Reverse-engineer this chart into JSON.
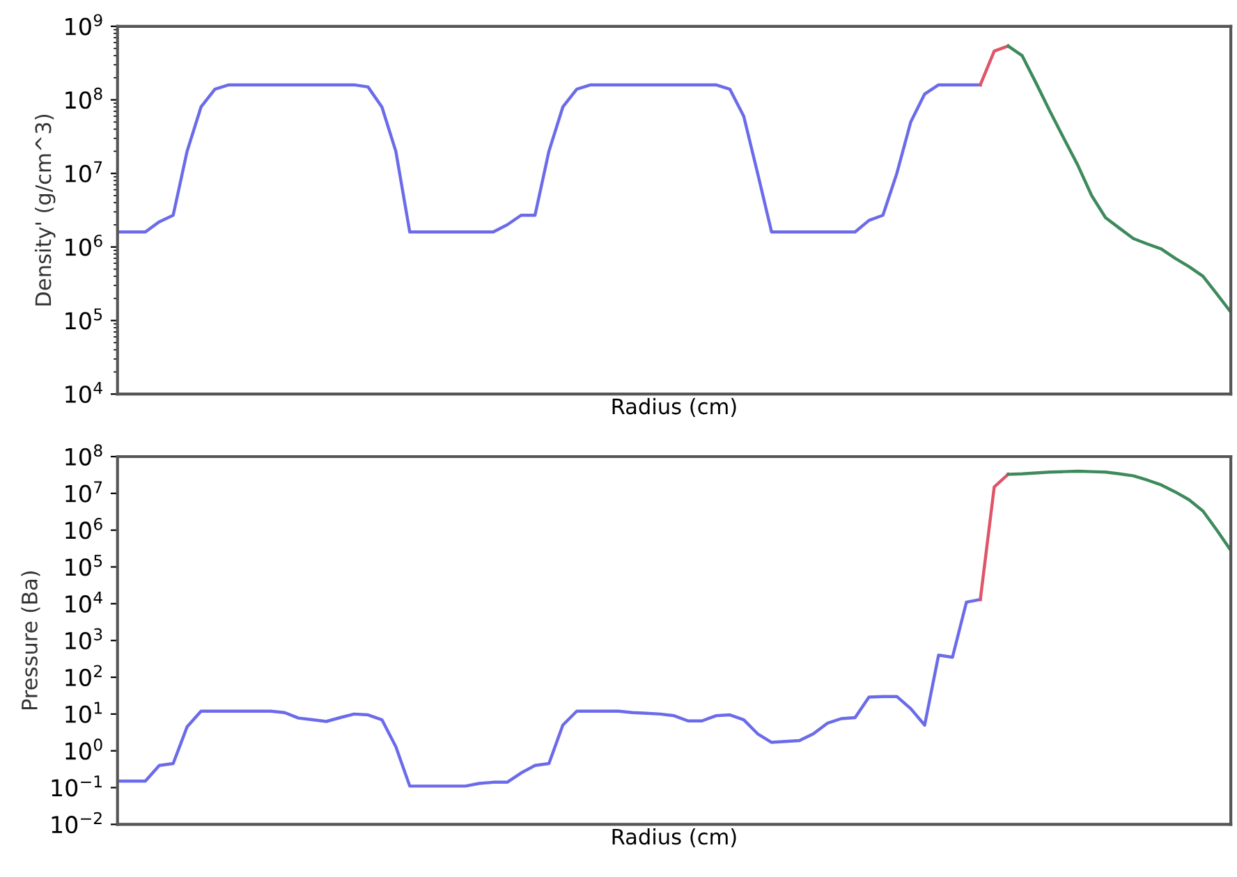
{
  "chart_data": [
    {
      "type": "line",
      "ylabel": "Density' (g/cm^3)",
      "xlabel": "Radius (cm)",
      "log": "y",
      "tick_labels": "y",
      "grid": false,
      "legend": false,
      "marker": "none",
      "line_style": "solid",
      "categories": [
        null,
        null,
        null,
        null,
        null,
        null,
        null,
        null,
        null,
        null,
        null,
        null,
        null,
        null,
        null,
        null,
        null,
        null,
        null,
        null,
        null,
        null,
        null,
        null,
        null,
        null,
        null,
        null,
        null,
        null,
        null,
        null,
        null,
        null,
        null,
        null,
        null,
        null,
        null,
        null,
        null,
        null,
        null,
        null,
        null,
        null,
        null,
        null,
        null,
        null,
        null,
        null,
        null,
        null,
        null,
        null,
        null,
        null,
        null,
        null,
        null,
        null,
        null,
        null,
        null,
        null,
        null,
        null,
        null,
        null,
        null,
        null,
        null,
        null,
        null,
        null,
        null,
        null,
        null,
        null,
        null
      ],
      "ylim": [
        10000.0,
        1000000000.0
      ],
      "yticks": [
        {
          "value": 10000.0,
          "label": "10$^{4}$"
        },
        {
          "value": 100000.0,
          "label": "10$^{5}$"
        },
        {
          "value": 1000000.0,
          "label": "10$^{6}$"
        },
        {
          "value": 10000000.0,
          "label": "10$^{7}$"
        },
        {
          "value": 100000000.0,
          "label": "10$^{8}$"
        },
        {
          "value": 1000000000.0,
          "label": "10$^{9}$"
        }
      ],
      "series": [
        {
          "color": "#6b6bea",
          "values": [
            1600000.0,
            1600000.0,
            1600000.0,
            2200000.0,
            2700000.0,
            20000000.0,
            80000000.0,
            140000000.0,
            160000000.0,
            160000000.0,
            160000000.0,
            160000000.0,
            160000000.0,
            160000000.0,
            160000000.0,
            160000000.0,
            160000000.0,
            160000000.0,
            150000000.0,
            80000000.0,
            20000000.0,
            1600000.0,
            1600000.0,
            1600000.0,
            1600000.0,
            1600000.0,
            1600000.0,
            1600000.0,
            2000000.0,
            2700000.0,
            2700000.0,
            20000000.0,
            80000000.0,
            140000000.0,
            160000000.0,
            160000000.0,
            160000000.0,
            160000000.0,
            160000000.0,
            160000000.0,
            160000000.0,
            160000000.0,
            160000000.0,
            160000000.0,
            140000000.0,
            60000000.0,
            10000000.0,
            1600000.0,
            1600000.0,
            1600000.0,
            1600000.0,
            1600000.0,
            1600000.0,
            1600000.0,
            2300000.0,
            2700000.0,
            10000000.0,
            50000000.0,
            120000000.0,
            160000000.0,
            160000000.0,
            160000000.0,
            160000000.0,
            null,
            null,
            null,
            null,
            null,
            null,
            null,
            null,
            null,
            null,
            null,
            null,
            null,
            null,
            null,
            null,
            null,
            null
          ]
        },
        {
          "color": "#e05468",
          "values": [
            null,
            null,
            null,
            null,
            null,
            null,
            null,
            null,
            null,
            null,
            null,
            null,
            null,
            null,
            null,
            null,
            null,
            null,
            null,
            null,
            null,
            null,
            null,
            null,
            null,
            null,
            null,
            null,
            null,
            null,
            null,
            null,
            null,
            null,
            null,
            null,
            null,
            null,
            null,
            null,
            null,
            null,
            null,
            null,
            null,
            null,
            null,
            null,
            null,
            null,
            null,
            null,
            null,
            null,
            null,
            null,
            null,
            null,
            null,
            null,
            null,
            null,
            160000000.0,
            460000000.0,
            540000000.0,
            null,
            null,
            null,
            null,
            null,
            null,
            null,
            null,
            null,
            null,
            null,
            null,
            null,
            null,
            null,
            null
          ]
        },
        {
          "color": "#3e8a5c",
          "values": [
            null,
            null,
            null,
            null,
            null,
            null,
            null,
            null,
            null,
            null,
            null,
            null,
            null,
            null,
            null,
            null,
            null,
            null,
            null,
            null,
            null,
            null,
            null,
            null,
            null,
            null,
            null,
            null,
            null,
            null,
            null,
            null,
            null,
            null,
            null,
            null,
            null,
            null,
            null,
            null,
            null,
            null,
            null,
            null,
            null,
            null,
            null,
            null,
            null,
            null,
            null,
            null,
            null,
            null,
            null,
            null,
            null,
            null,
            null,
            null,
            null,
            null,
            null,
            null,
            540000000.0,
            400000000.0,
            170000000.0,
            70000000.0,
            30000000.0,
            13000000.0,
            5000000.0,
            2500000.0,
            1800000.0,
            1300000.0,
            1100000.0,
            940000.0,
            700000.0,
            540000.0,
            400000.0,
            230000.0,
            130000.0
          ]
        }
      ]
    },
    {
      "type": "line",
      "ylabel": "Pressure (Ba)",
      "xlabel": "Radius (cm)",
      "log": "y",
      "tick_labels": "y",
      "grid": false,
      "legend": false,
      "marker": "none",
      "line_style": "solid",
      "categories": [
        null,
        null,
        null,
        null,
        null,
        null,
        null,
        null,
        null,
        null,
        null,
        null,
        null,
        null,
        null,
        null,
        null,
        null,
        null,
        null,
        null,
        null,
        null,
        null,
        null,
        null,
        null,
        null,
        null,
        null,
        null,
        null,
        null,
        null,
        null,
        null,
        null,
        null,
        null,
        null,
        null,
        null,
        null,
        null,
        null,
        null,
        null,
        null,
        null,
        null,
        null,
        null,
        null,
        null,
        null,
        null,
        null,
        null,
        null,
        null,
        null,
        null,
        null,
        null,
        null,
        null,
        null,
        null,
        null,
        null,
        null,
        null,
        null,
        null,
        null,
        null,
        null,
        null,
        null,
        null,
        null
      ],
      "ylim": [
        0.01,
        100000000.0
      ],
      "yticks": [
        {
          "value": 0.01,
          "label": "10$^{−2}$"
        },
        {
          "value": 0.1,
          "label": "10$^{−1}$"
        },
        {
          "value": 1,
          "label": "10$^{0}$"
        },
        {
          "value": 10,
          "label": "10$^{1}$"
        },
        {
          "value": 100,
          "label": "10$^{2}$"
        },
        {
          "value": 1000,
          "label": "10$^{3}$"
        },
        {
          "value": 10000.0,
          "label": "10$^{4}$"
        },
        {
          "value": 100000.0,
          "label": "10$^{5}$"
        },
        {
          "value": 1000000.0,
          "label": "10$^{6}$"
        },
        {
          "value": 10000000.0,
          "label": "10$^{7}$"
        },
        {
          "value": 100000000.0,
          "label": "10$^{8}$"
        }
      ],
      "series": [
        {
          "color": "#6b6bea",
          "values": [
            0.15,
            0.15,
            0.15,
            0.4,
            0.45,
            4.5,
            12,
            12,
            12,
            12,
            12,
            12,
            11,
            7.8,
            7,
            6.3,
            8,
            10,
            9.5,
            7,
            1.3,
            0.11,
            0.11,
            0.11,
            0.11,
            0.11,
            0.13,
            0.14,
            0.14,
            0.25,
            0.4,
            0.45,
            5,
            12,
            12,
            12,
            12,
            11,
            10.5,
            10,
            9,
            6.5,
            6.5,
            9,
            9.5,
            7,
            2.9,
            1.7,
            1.8,
            1.9,
            2.9,
            5.6,
            7.5,
            8,
            29,
            30,
            30,
            14,
            5,
            400,
            350,
            11000.0,
            13000.0,
            null,
            null,
            null,
            null,
            null,
            null,
            null,
            null,
            null,
            null,
            null,
            null,
            null,
            null,
            null,
            null,
            null,
            null
          ]
        },
        {
          "color": "#e05468",
          "values": [
            null,
            null,
            null,
            null,
            null,
            null,
            null,
            null,
            null,
            null,
            null,
            null,
            null,
            null,
            null,
            null,
            null,
            null,
            null,
            null,
            null,
            null,
            null,
            null,
            null,
            null,
            null,
            null,
            null,
            null,
            null,
            null,
            null,
            null,
            null,
            null,
            null,
            null,
            null,
            null,
            null,
            null,
            null,
            null,
            null,
            null,
            null,
            null,
            null,
            null,
            null,
            null,
            null,
            null,
            null,
            null,
            null,
            null,
            null,
            null,
            null,
            null,
            13000.0,
            15000000.0,
            33000000.0,
            null,
            null,
            null,
            null,
            null,
            null,
            null,
            null,
            null,
            null,
            null,
            null,
            null,
            null,
            null,
            null
          ]
        },
        {
          "color": "#3e8a5c",
          "values": [
            null,
            null,
            null,
            null,
            null,
            null,
            null,
            null,
            null,
            null,
            null,
            null,
            null,
            null,
            null,
            null,
            null,
            null,
            null,
            null,
            null,
            null,
            null,
            null,
            null,
            null,
            null,
            null,
            null,
            null,
            null,
            null,
            null,
            null,
            null,
            null,
            null,
            null,
            null,
            null,
            null,
            null,
            null,
            null,
            null,
            null,
            null,
            null,
            null,
            null,
            null,
            null,
            null,
            null,
            null,
            null,
            null,
            null,
            null,
            null,
            null,
            null,
            null,
            null,
            33000000.0,
            34000000.0,
            36000000.0,
            38000000.0,
            39000000.0,
            40000000.0,
            39000000.0,
            38000000.0,
            34000000.0,
            30000000.0,
            23000000.0,
            17000000.0,
            11000000.0,
            6700000.0,
            3300000.0,
            1000000.0,
            280000.0
          ]
        }
      ]
    }
  ]
}
